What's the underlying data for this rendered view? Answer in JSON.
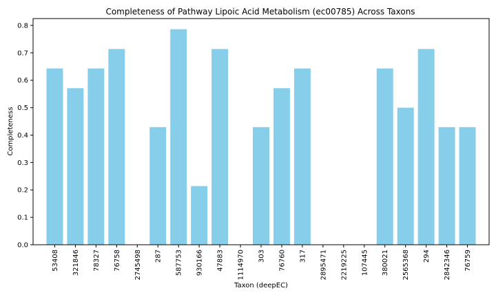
{
  "chart_data": {
    "type": "bar",
    "title": "Completeness of Pathway Lipoic Acid Metabolism (ec00785) Across Taxons",
    "xlabel": "Taxon (deepEC)",
    "ylabel": "Completeness",
    "categories": [
      "53408",
      "321846",
      "78327",
      "76758",
      "2745498",
      "287",
      "587753",
      "930166",
      "47883",
      "1114970",
      "303",
      "76760",
      "317",
      "2895471",
      "2219225",
      "107445",
      "380021",
      "2565368",
      "294",
      "2842346",
      "76759"
    ],
    "values": [
      0.643,
      0.571,
      0.643,
      0.714,
      0.0,
      0.429,
      0.786,
      0.214,
      0.714,
      0.0,
      0.429,
      0.571,
      0.643,
      0.0,
      0.0,
      0.0,
      0.643,
      0.5,
      0.714,
      0.429,
      0.429
    ],
    "ylim": [
      0,
      0.825
    ],
    "yticks": [
      0.0,
      0.1,
      0.2,
      0.3,
      0.4,
      0.5,
      0.6,
      0.7,
      0.8
    ],
    "ytick_labels": [
      "0.0",
      "0.1",
      "0.2",
      "0.3",
      "0.4",
      "0.5",
      "0.6",
      "0.7",
      "0.8"
    ],
    "bar_color": "#87ceeb",
    "grid": false,
    "legend": "none"
  }
}
